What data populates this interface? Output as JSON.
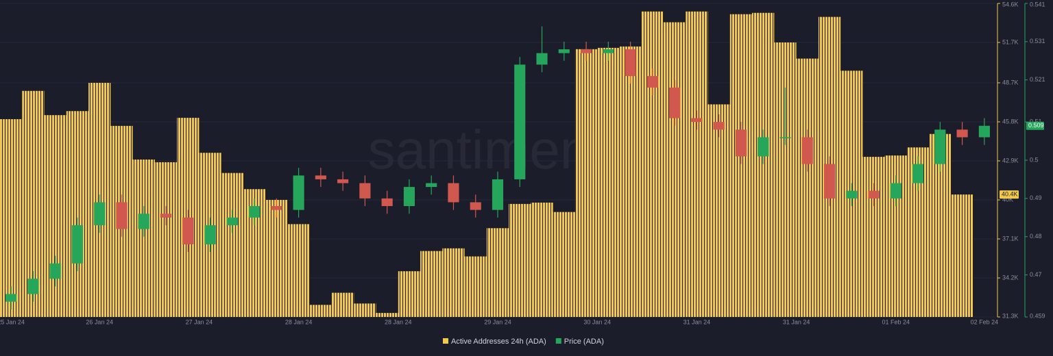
{
  "chart_data": {
    "type": "combo",
    "watermark": "santiment",
    "xlim": [
      0,
      45
    ],
    "xticks": [
      {
        "value": 0.5,
        "label": "25 Jan 24"
      },
      {
        "value": 4.5,
        "label": "26 Jan 24"
      },
      {
        "value": 9,
        "label": "27 Jan 24"
      },
      {
        "value": 13.5,
        "label": "28 Jan 24"
      },
      {
        "value": 18,
        "label": "28 Jan 24"
      },
      {
        "value": 22.5,
        "label": "29 Jan 24"
      },
      {
        "value": 27,
        "label": "30 Jan 24"
      },
      {
        "value": 31.5,
        "label": "31 Jan 24"
      },
      {
        "value": 36,
        "label": "31 Jan 24"
      },
      {
        "value": 40.5,
        "label": "01 Feb 24"
      },
      {
        "value": 44.5,
        "label": "02 Feb 24"
      }
    ],
    "ylim": [
      31300,
      54600
    ],
    "yticks": [
      {
        "value": 54600,
        "label": "54.6K"
      },
      {
        "value": 51700,
        "label": "51.7K"
      },
      {
        "value": 48700,
        "label": "48.7K"
      },
      {
        "value": 45800,
        "label": "45.8K"
      },
      {
        "value": 42900,
        "label": "42.9K"
      },
      {
        "value": 40000,
        "label": "40K"
      },
      {
        "value": 37100,
        "label": "37.1K"
      },
      {
        "value": 34200,
        "label": "34.2K"
      },
      {
        "value": 31300,
        "label": "31.3K"
      }
    ],
    "y2lim": [
      0.459,
      0.541
    ],
    "y2ticks": [
      0.541,
      0.531,
      0.521,
      0.51,
      0.5,
      0.49,
      0.48,
      0.47,
      0.459
    ],
    "series": [
      {
        "name": "Active Addresses 24h (ADA)",
        "type": "bar",
        "color": "#f2c94c",
        "axis": "y",
        "last_label": "40.4K",
        "x": [
          0,
          1,
          2,
          3,
          4,
          5,
          6,
          7,
          8,
          9,
          10,
          11,
          12,
          13,
          14,
          15,
          16,
          17,
          18,
          19,
          20,
          21,
          22,
          23,
          24,
          25,
          26,
          27,
          28,
          29,
          30,
          31,
          32,
          33,
          34,
          35,
          36,
          37,
          38,
          39,
          40,
          41,
          42,
          43
        ],
        "values": [
          46000,
          48100,
          46300,
          46600,
          48700,
          45500,
          43000,
          42800,
          46100,
          43500,
          42000,
          40800,
          40000,
          38200,
          32200,
          33100,
          32300,
          31600,
          34700,
          36200,
          36400,
          35800,
          37900,
          39700,
          39800,
          39100,
          51200,
          51300,
          51400,
          54000,
          53200,
          54000,
          47100,
          53800,
          53900,
          51700,
          50500,
          53600,
          49600,
          43200,
          43300,
          43900,
          44900,
          40400
        ]
      },
      {
        "name": "Price (ADA)",
        "type": "candlestick",
        "color": "#26a65b",
        "down_color": "#d0584f",
        "axis": "y2",
        "x": [
          0.5,
          1.5,
          2.5,
          3.5,
          4.5,
          5.5,
          6.5,
          7.5,
          8.5,
          9.5,
          10.5,
          11.5,
          12.5,
          13.5,
          14.5,
          15.5,
          16.5,
          17.5,
          18.5,
          19.5,
          20.5,
          21.5,
          22.5,
          23.5,
          24.5,
          25.5,
          26.5,
          27.5,
          28.5,
          29.5,
          30.5,
          31.5,
          32.5,
          33.5,
          34.5,
          35.5,
          36.5,
          37.5,
          38.5,
          39.5,
          40.5,
          41.5,
          42.5,
          43.5,
          44.5
        ],
        "open": [
          0.463,
          0.465,
          0.469,
          0.473,
          0.483,
          0.489,
          0.482,
          0.486,
          0.485,
          0.478,
          0.483,
          0.485,
          0.488,
          0.487,
          0.496,
          0.495,
          0.494,
          0.49,
          0.488,
          0.493,
          0.494,
          0.489,
          0.487,
          0.495,
          0.525,
          0.528,
          0.529,
          0.528,
          0.529,
          0.522,
          0.519,
          0.511,
          0.51,
          0.508,
          0.501,
          0.506,
          0.506,
          0.499,
          0.49,
          0.492,
          0.49,
          0.494,
          0.499,
          0.508,
          0.506
        ],
        "high": [
          0.467,
          0.471,
          0.475,
          0.485,
          0.491,
          0.491,
          0.488,
          0.488,
          0.487,
          0.485,
          0.487,
          0.49,
          0.49,
          0.498,
          0.498,
          0.497,
          0.496,
          0.492,
          0.495,
          0.496,
          0.496,
          0.491,
          0.497,
          0.527,
          0.535,
          0.531,
          0.531,
          0.531,
          0.531,
          0.524,
          0.521,
          0.513,
          0.512,
          0.51,
          0.508,
          0.519,
          0.508,
          0.501,
          0.494,
          0.494,
          0.496,
          0.501,
          0.51,
          0.51,
          0.511
        ],
        "low": [
          0.461,
          0.463,
          0.467,
          0.471,
          0.481,
          0.48,
          0.48,
          0.483,
          0.476,
          0.476,
          0.481,
          0.483,
          0.485,
          0.485,
          0.493,
          0.492,
          0.488,
          0.486,
          0.486,
          0.491,
          0.487,
          0.485,
          0.485,
          0.493,
          0.523,
          0.526,
          0.526,
          0.526,
          0.52,
          0.517,
          0.509,
          0.508,
          0.506,
          0.499,
          0.499,
          0.504,
          0.497,
          0.488,
          0.488,
          0.488,
          0.488,
          0.492,
          0.497,
          0.504,
          0.504
        ],
        "close": [
          0.465,
          0.469,
          0.473,
          0.483,
          0.489,
          0.482,
          0.486,
          0.485,
          0.478,
          0.483,
          0.485,
          0.488,
          0.487,
          0.496,
          0.495,
          0.494,
          0.49,
          0.488,
          0.493,
          0.494,
          0.489,
          0.487,
          0.495,
          0.525,
          0.528,
          0.529,
          0.528,
          0.529,
          0.522,
          0.519,
          0.511,
          0.51,
          0.508,
          0.501,
          0.506,
          0.506,
          0.499,
          0.49,
          0.492,
          0.49,
          0.494,
          0.499,
          0.508,
          0.506,
          0.509
        ]
      }
    ]
  }
}
